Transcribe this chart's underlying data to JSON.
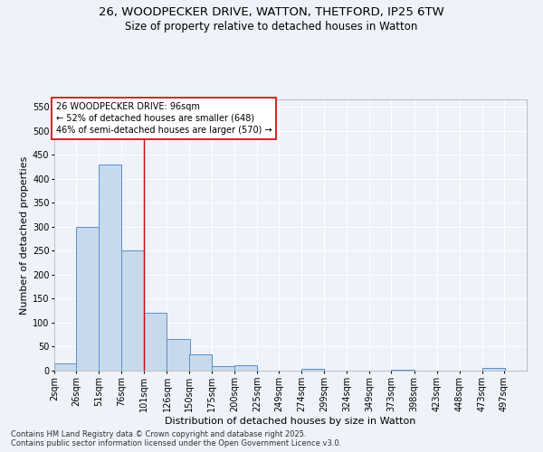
{
  "title_line1": "26, WOODPECKER DRIVE, WATTON, THETFORD, IP25 6TW",
  "title_line2": "Size of property relative to detached houses in Watton",
  "xlabel": "Distribution of detached houses by size in Watton",
  "ylabel": "Number of detached properties",
  "bar_color": "#c9d9ec",
  "bar_edge_color": "#5b8fc9",
  "bar_left_edges": [
    2,
    26,
    51,
    76,
    101,
    126,
    150,
    175,
    200,
    225,
    249,
    274,
    299,
    324,
    349,
    373,
    398,
    423,
    448,
    473
  ],
  "bar_heights": [
    15,
    300,
    430,
    250,
    120,
    65,
    33,
    10,
    12,
    0,
    0,
    4,
    0,
    0,
    0,
    2,
    0,
    0,
    0,
    5
  ],
  "bin_width": 25,
  "xlim_left": 2,
  "xlim_right": 522,
  "ylim_bottom": 0,
  "ylim_top": 565,
  "yticks": [
    0,
    50,
    100,
    150,
    200,
    250,
    300,
    350,
    400,
    450,
    500,
    550
  ],
  "xtick_labels": [
    "2sqm",
    "26sqm",
    "51sqm",
    "76sqm",
    "101sqm",
    "126sqm",
    "150sqm",
    "175sqm",
    "200sqm",
    "225sqm",
    "249sqm",
    "274sqm",
    "299sqm",
    "324sqm",
    "349sqm",
    "373sqm",
    "398sqm",
    "423sqm",
    "448sqm",
    "473sqm",
    "497sqm"
  ],
  "xtick_positions": [
    2,
    26,
    51,
    76,
    101,
    126,
    150,
    175,
    200,
    225,
    249,
    274,
    299,
    324,
    349,
    373,
    398,
    423,
    448,
    473,
    497
  ],
  "vline_x": 101,
  "vline_color": "#cc0000",
  "annotation_text": "26 WOODPECKER DRIVE: 96sqm\n← 52% of detached houses are smaller (648)\n46% of semi-detached houses are larger (570) →",
  "annotation_box_color": "#ffffff",
  "annotation_box_edge": "#cc0000",
  "background_color": "#eef2f9",
  "grid_color": "#ffffff",
  "footer_line1": "Contains HM Land Registry data © Crown copyright and database right 2025.",
  "footer_line2": "Contains public sector information licensed under the Open Government Licence v3.0.",
  "title_fontsize": 9.5,
  "subtitle_fontsize": 8.5,
  "axis_label_fontsize": 8,
  "tick_fontsize": 7,
  "annotation_fontsize": 7,
  "footer_fontsize": 6
}
